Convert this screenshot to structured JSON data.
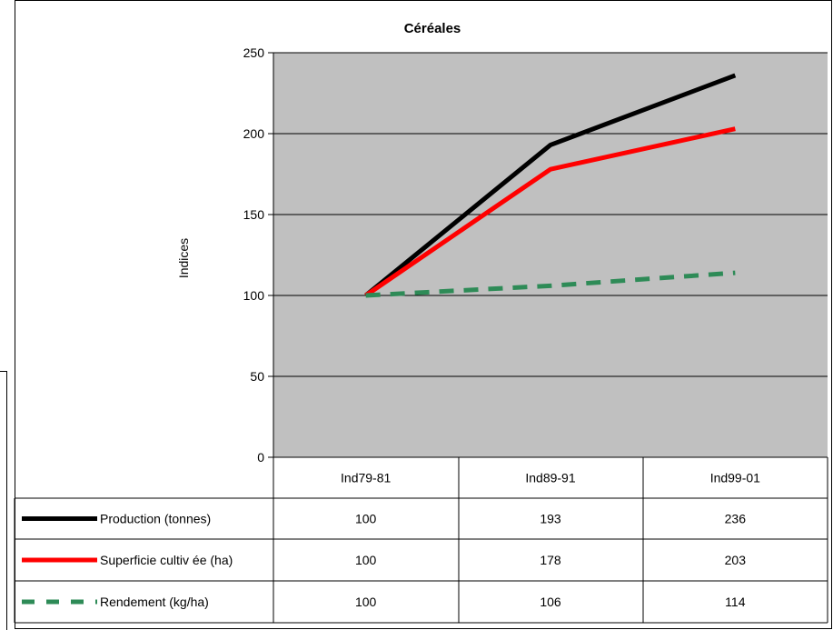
{
  "chart_data": {
    "type": "line",
    "title": "Céréales",
    "ylabel": "Indices",
    "xlabel": "",
    "categories": [
      "Ind79-81",
      "Ind89-91",
      "Ind99-01"
    ],
    "ylim": [
      0,
      250
    ],
    "yticks": [
      0,
      50,
      100,
      150,
      200,
      250
    ],
    "grid": true,
    "legend_placement": "data-table-left",
    "plot_background": "#c0c0c0",
    "series": [
      {
        "name": "Production (tonnes)",
        "values": [
          100,
          193,
          236
        ],
        "color": "#000000",
        "style": "solid"
      },
      {
        "name": "Superficie cultiv ée (ha)",
        "values": [
          100,
          178,
          203
        ],
        "color": "#ff0000",
        "style": "solid"
      },
      {
        "name": "Rendement (kg/ha)",
        "values": [
          100,
          106,
          114
        ],
        "color": "#2e8b57",
        "style": "dashed"
      }
    ]
  }
}
